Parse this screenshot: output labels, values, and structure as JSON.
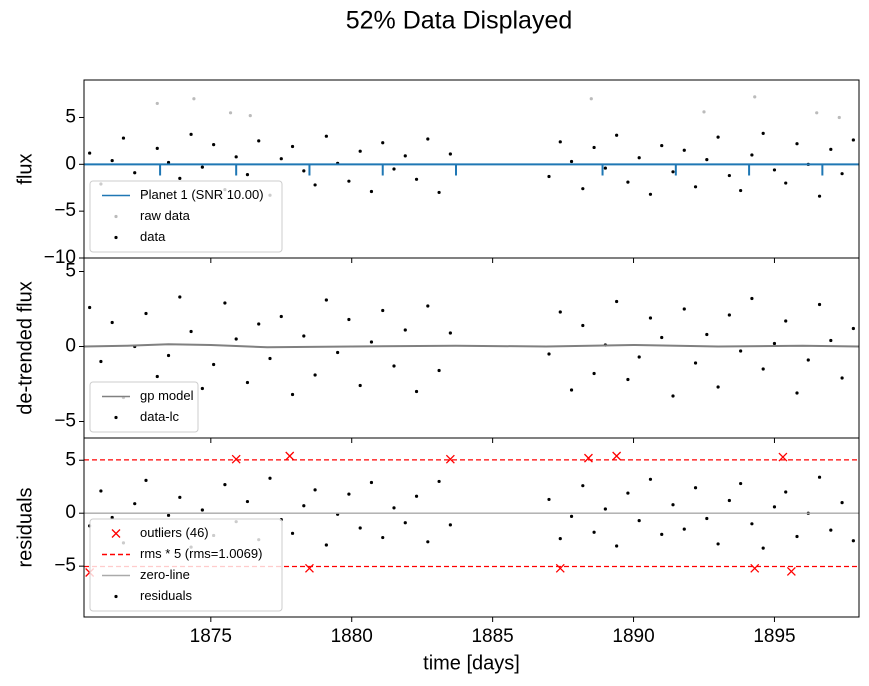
{
  "title": "52% Data Displayed",
  "chart_data": [
    {
      "type": "scatter",
      "ylabel": "flux",
      "xlim": [
        1870.5,
        1898.0
      ],
      "ylim": [
        -10,
        9
      ],
      "yticks": [
        {
          "value": -10,
          "label": "−10"
        },
        {
          "value": -5,
          "label": "−5"
        },
        0,
        5
      ],
      "legend": "lower left",
      "series": [
        {
          "name": "Planet 1 (SNR 10.00)",
          "kind": "line",
          "color": "#1f77b4",
          "x": [
            1870.5,
            1873.2,
            1873.2,
            1873.2,
            1875.9,
            1875.9,
            1875.9,
            1878.5,
            1878.5,
            1878.5,
            1881.1,
            1881.1,
            1881.1,
            1883.7,
            1883.7,
            1883.7,
            1888.9,
            1888.9,
            1888.9,
            1891.5,
            1891.5,
            1891.5,
            1894.1,
            1894.1,
            1894.1,
            1896.7,
            1896.7,
            1896.7,
            1898.0
          ],
          "values": [
            0,
            0,
            -1.2,
            0,
            0,
            -1.2,
            0,
            0,
            -1.2,
            0,
            0,
            -1.2,
            0,
            0,
            -1.2,
            0,
            0,
            -1.2,
            0,
            0,
            -1.2,
            0,
            0,
            -1.2,
            0,
            0,
            -1.2,
            0,
            0
          ]
        },
        {
          "name": "raw data",
          "kind": "points",
          "color": "#bbbbbb",
          "x": [
            1873.1,
            1874.4,
            1875.7,
            1876.4,
            1888.5,
            1892.5,
            1894.3,
            1896.5,
            1897.3
          ],
          "values": [
            6.5,
            7.0,
            5.5,
            5.2,
            7.0,
            5.6,
            7.2,
            5.5,
            5.0
          ]
        },
        {
          "name": "data",
          "kind": "points",
          "color": "#000000",
          "x": [
            1870.7,
            1871.1,
            1871.5,
            1871.9,
            1872.3,
            1872.7,
            1873.1,
            1873.5,
            1873.9,
            1874.3,
            1874.7,
            1875.1,
            1875.5,
            1875.9,
            1876.3,
            1876.7,
            1877.1,
            1877.5,
            1877.9,
            1878.3,
            1878.7,
            1879.1,
            1879.5,
            1879.9,
            1880.3,
            1880.7,
            1881.1,
            1881.5,
            1881.9,
            1882.3,
            1882.7,
            1883.1,
            1883.5,
            1887.0,
            1887.4,
            1887.8,
            1888.2,
            1888.6,
            1889.0,
            1889.4,
            1889.8,
            1890.2,
            1890.6,
            1891.0,
            1891.4,
            1891.8,
            1892.2,
            1892.6,
            1893.0,
            1893.4,
            1893.8,
            1894.2,
            1894.6,
            1895.0,
            1895.4,
            1895.8,
            1896.2,
            1896.6,
            1897.0,
            1897.4,
            1897.8
          ],
          "values": [
            1.2,
            -2.1,
            0.4,
            2.8,
            -0.9,
            -3.1,
            1.7,
            0.2,
            -1.5,
            3.2,
            -0.3,
            2.1,
            -2.7,
            0.8,
            -1.1,
            2.5,
            -3.3,
            0.6,
            1.9,
            -0.7,
            -2.2,
            3.0,
            0.1,
            -1.8,
            1.4,
            -2.9,
            2.3,
            -0.5,
            0.9,
            -1.6,
            2.7,
            -3.0,
            1.1,
            -1.3,
            2.4,
            0.3,
            -2.6,
            1.8,
            -0.4,
            3.1,
            -1.9,
            0.7,
            -3.2,
            2.0,
            -0.8,
            1.5,
            -2.4,
            0.5,
            2.9,
            -1.2,
            -2.8,
            1.0,
            3.3,
            -0.6,
            -2.0,
            2.2,
            0.0,
            -3.4,
            1.6,
            -1.0,
            2.6
          ]
        }
      ]
    },
    {
      "type": "scatter",
      "ylabel": "de-trended flux",
      "xlim": [
        1870.5,
        1898.0
      ],
      "ylim": [
        -6.1,
        5.9
      ],
      "yticks": [
        {
          "value": -5,
          "label": "−5"
        },
        0,
        5
      ],
      "legend": "lower left",
      "series": [
        {
          "name": "gp model",
          "kind": "line",
          "color": "#808080",
          "x": [
            1870.5,
            1872,
            1873.5,
            1875,
            1877,
            1880,
            1883.7,
            1886.9,
            1890,
            1893,
            1896,
            1898
          ],
          "values": [
            0,
            0.05,
            0.15,
            0.1,
            -0.05,
            0,
            0.05,
            0,
            0.1,
            0,
            0.05,
            0
          ]
        },
        {
          "name": "data-lc",
          "kind": "points",
          "color": "#000000",
          "x": [
            1870.7,
            1871.1,
            1871.5,
            1871.9,
            1872.3,
            1872.7,
            1873.1,
            1873.5,
            1873.9,
            1874.3,
            1874.7,
            1875.1,
            1875.5,
            1875.9,
            1876.3,
            1876.7,
            1877.1,
            1877.5,
            1877.9,
            1878.3,
            1878.7,
            1879.1,
            1879.5,
            1879.9,
            1880.3,
            1880.7,
            1881.1,
            1881.5,
            1881.9,
            1882.3,
            1882.7,
            1883.1,
            1883.5,
            1887.0,
            1887.4,
            1887.8,
            1888.2,
            1888.6,
            1889.0,
            1889.4,
            1889.8,
            1890.2,
            1890.6,
            1891.0,
            1891.4,
            1891.8,
            1892.2,
            1892.6,
            1893.0,
            1893.4,
            1893.8,
            1894.2,
            1894.6,
            1895.0,
            1895.4,
            1895.8,
            1896.2,
            1896.6,
            1897.0,
            1897.4,
            1897.8
          ],
          "values": [
            2.6,
            -1.0,
            1.6,
            -3.4,
            0.0,
            2.2,
            -2.0,
            -0.6,
            3.3,
            1.0,
            -2.8,
            -1.2,
            2.9,
            0.5,
            -2.4,
            1.5,
            -0.8,
            2.0,
            -3.2,
            0.7,
            -1.9,
            3.1,
            -0.4,
            1.8,
            -2.6,
            0.3,
            2.4,
            -1.3,
            1.1,
            -3.0,
            2.7,
            -1.6,
            0.9,
            -0.5,
            2.3,
            -2.9,
            1.4,
            -1.8,
            0.1,
            3.0,
            -2.2,
            -0.7,
            1.9,
            0.6,
            -3.3,
            2.5,
            -1.1,
            0.8,
            -2.7,
            2.1,
            -0.3,
            3.2,
            -1.5,
            0.2,
            1.7,
            -3.1,
            -0.9,
            2.8,
            0.4,
            -2.1,
            1.2
          ]
        }
      ]
    },
    {
      "type": "scatter",
      "ylabel": "residuals",
      "xlabel": "time [days]",
      "xlim": [
        1870.5,
        1898.0
      ],
      "ylim": [
        -9.8,
        7.1
      ],
      "xticks": [
        1875,
        1880,
        1885,
        1890,
        1895
      ],
      "yticks": [
        {
          "value": -5,
          "label": "−5"
        },
        0,
        5
      ],
      "legend": "lower left",
      "series": [
        {
          "name": "outliers (46)",
          "kind": "cross",
          "color": "#ff0000",
          "x": [
            1870.7,
            1875.9,
            1877.8,
            1878.5,
            1883.5,
            1887.4,
            1888.4,
            1889.4,
            1894.3,
            1895.3,
            1895.6
          ],
          "values": [
            -5.6,
            5.1,
            5.4,
            -5.2,
            5.1,
            -5.2,
            5.2,
            5.4,
            -5.2,
            5.3,
            -5.5
          ]
        },
        {
          "name": "rms * 5 (rms=1.0069)",
          "kind": "hline",
          "color": "#ff0000",
          "dashed": true,
          "values": [
            5.0345,
            -5.0345
          ]
        },
        {
          "name": "zero-line",
          "kind": "hline",
          "color": "#aaaaaa",
          "values": [
            0
          ]
        },
        {
          "name": "residuals",
          "kind": "points",
          "color": "#000000",
          "x": [
            1870.7,
            1871.1,
            1871.5,
            1871.9,
            1872.3,
            1872.7,
            1873.1,
            1873.5,
            1873.9,
            1874.3,
            1874.7,
            1875.1,
            1875.5,
            1875.9,
            1876.3,
            1876.7,
            1877.1,
            1877.5,
            1877.9,
            1878.3,
            1878.7,
            1879.1,
            1879.5,
            1879.9,
            1880.3,
            1880.7,
            1881.1,
            1881.5,
            1881.9,
            1882.3,
            1882.7,
            1883.1,
            1883.5,
            1887.0,
            1887.4,
            1887.8,
            1888.2,
            1888.6,
            1889.0,
            1889.4,
            1889.8,
            1890.2,
            1890.6,
            1891.0,
            1891.4,
            1891.8,
            1892.2,
            1892.6,
            1893.0,
            1893.4,
            1893.8,
            1894.2,
            1894.6,
            1895.0,
            1895.4,
            1895.8,
            1896.2,
            1896.6,
            1897.0,
            1897.4,
            1897.8
          ],
          "values": [
            -1.2,
            2.1,
            -0.4,
            -2.8,
            0.9,
            3.1,
            -1.7,
            -0.2,
            1.5,
            -3.2,
            0.3,
            -2.1,
            2.7,
            -0.8,
            1.1,
            -2.5,
            3.3,
            -0.6,
            -1.9,
            0.7,
            2.2,
            -3.0,
            -0.1,
            1.8,
            -1.4,
            2.9,
            -2.3,
            0.5,
            -0.9,
            1.6,
            -2.7,
            3.0,
            -1.1,
            1.3,
            -2.4,
            -0.3,
            2.6,
            -1.8,
            0.4,
            -3.1,
            1.9,
            -0.7,
            3.2,
            -2.0,
            0.8,
            -1.5,
            2.4,
            -0.5,
            -2.9,
            1.2,
            2.8,
            -1.0,
            -3.3,
            0.6,
            2.0,
            -2.2,
            0.0,
            3.4,
            -1.6,
            1.0,
            -2.6
          ]
        }
      ]
    }
  ]
}
